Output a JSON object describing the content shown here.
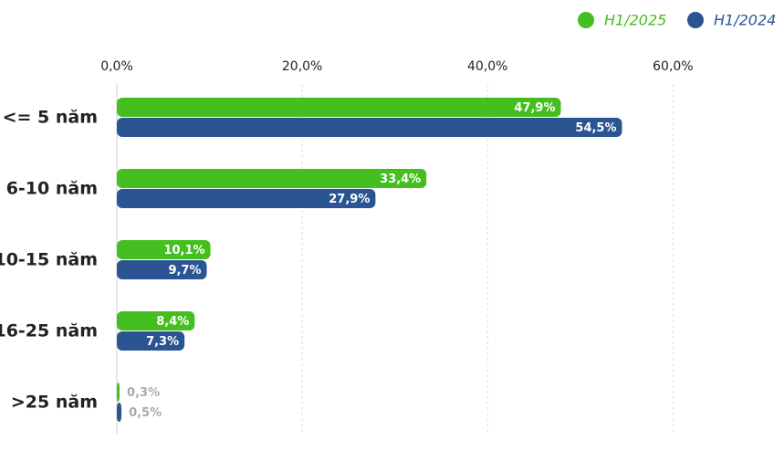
{
  "chart_data": {
    "type": "hbar",
    "categories": [
      "<= 5 năm",
      "6-10 năm",
      "10-15 năm",
      "16-25 năm",
      ">25 năm"
    ],
    "series": [
      {
        "name": "H1/2025",
        "color": "#44bf1f",
        "values": [
          47.9,
          33.4,
          10.1,
          8.4,
          0.3
        ],
        "value_labels": [
          "47,9%",
          "33,4%",
          "10,1%",
          "8,4%",
          "0,3%"
        ]
      },
      {
        "name": "H1/2024",
        "color": "#2b5592",
        "values": [
          54.5,
          27.9,
          9.7,
          7.3,
          0.5
        ],
        "value_labels": [
          "54,5%",
          "27,9%",
          "9,7%",
          "7,3%",
          "0,5%"
        ]
      }
    ],
    "xlim": [
      0,
      64
    ],
    "xticks": [
      {
        "value": 0,
        "label": "0,0%"
      },
      {
        "value": 20,
        "label": "20,0%"
      },
      {
        "value": 40,
        "label": "40,0%"
      },
      {
        "value": 60,
        "label": "60,0%"
      }
    ],
    "grid": true,
    "legend": "top-right"
  }
}
